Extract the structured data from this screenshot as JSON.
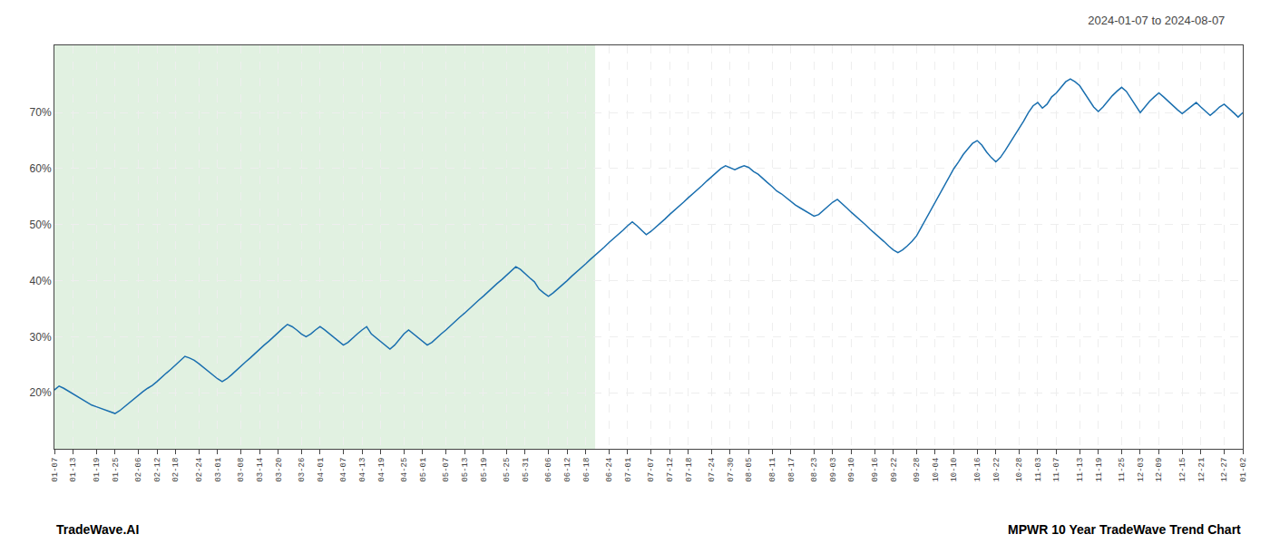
{
  "chart_data": {
    "type": "line",
    "title": "2024-01-07 to 2024-08-07",
    "annotations": [
      "TradeWave.AI",
      "MPWR 10 Year TradeWave Trend Chart"
    ],
    "color": "#1a6faf",
    "shade": {
      "x": [
        0,
        116.025
      ],
      "color": "#c8e6c9"
    },
    "grid": true,
    "ylim": [
      10,
      82
    ],
    "yticks": [
      {
        "value": 20,
        "label": "20%"
      },
      {
        "value": 30,
        "label": "30%"
      },
      {
        "value": 40,
        "label": "40%"
      },
      {
        "value": 50,
        "label": "50%"
      },
      {
        "value": 60,
        "label": "60%"
      },
      {
        "value": 70,
        "label": "70%"
      }
    ],
    "categories": [
      "01-07",
      null,
      null,
      null,
      "01-13",
      null,
      null,
      null,
      null,
      "01-19",
      null,
      null,
      null,
      "01-25",
      null,
      null,
      null,
      null,
      "02-06",
      null,
      null,
      null,
      "02-12",
      null,
      null,
      null,
      "02-18",
      null,
      null,
      null,
      null,
      "02-24",
      null,
      null,
      null,
      "03-01",
      null,
      null,
      null,
      null,
      "03-08",
      null,
      null,
      null,
      "03-14",
      null,
      null,
      null,
      "03-20",
      null,
      null,
      null,
      null,
      "03-26",
      null,
      null,
      null,
      "04-01",
      null,
      null,
      null,
      null,
      "04-07",
      null,
      null,
      null,
      "04-13",
      null,
      null,
      null,
      "04-19",
      null,
      null,
      null,
      null,
      "04-25",
      null,
      null,
      null,
      "05-01",
      null,
      null,
      null,
      null,
      "05-07",
      null,
      null,
      null,
      "05-13",
      null,
      null,
      null,
      "05-19",
      null,
      null,
      null,
      null,
      "05-25",
      null,
      null,
      null,
      "05-31",
      null,
      null,
      null,
      null,
      "06-06",
      null,
      null,
      null,
      "06-12",
      null,
      null,
      null,
      "06-18",
      null,
      null,
      null,
      null,
      "06-24",
      null,
      null,
      null,
      "07-01",
      null,
      null,
      null,
      null,
      "07-07",
      null,
      null,
      null,
      "07-12",
      null,
      null,
      null,
      "07-18",
      null,
      null,
      null,
      null,
      "07-24",
      null,
      null,
      null,
      "07-30",
      null,
      null,
      null,
      "08-05",
      null,
      null,
      null,
      null,
      "08-11",
      null,
      null,
      null,
      "08-17",
      null,
      null,
      null,
      null,
      "08-23",
      null,
      null,
      null,
      "09-03",
      null,
      null,
      null,
      "09-10",
      null,
      null,
      null,
      null,
      "09-16",
      null,
      null,
      null,
      "09-22",
      null,
      null,
      null,
      null,
      "09-28",
      null,
      null,
      null,
      "10-04",
      null,
      null,
      null,
      "10-10",
      null,
      null,
      null,
      null,
      "10-16",
      null,
      null,
      null,
      "10-22",
      null,
      null,
      null,
      null,
      "10-28",
      null,
      null,
      null,
      "11-03",
      null,
      null,
      null,
      "11-07",
      null,
      null,
      null,
      null,
      "11-13",
      null,
      null,
      null,
      "11-19",
      null,
      null,
      null,
      null,
      "11-25",
      null,
      null,
      null,
      "12-03",
      null,
      null,
      null,
      "12-09",
      null,
      null,
      null,
      null,
      "12-15",
      null,
      null,
      null,
      "12-21",
      null,
      null,
      null,
      null,
      "12-27",
      null,
      null,
      null,
      "01-02"
    ],
    "values": [
      20.5,
      21.2,
      20.8,
      20.3,
      19.8,
      19.2,
      18.7,
      18.2,
      17.8,
      17.5,
      17.2,
      16.8,
      16.5,
      16.3,
      16.8,
      17.5,
      18.2,
      18.8,
      19.5,
      20.2,
      20.8,
      21.3,
      22.0,
      22.8,
      23.5,
      24.2,
      25.0,
      25.8,
      26.5,
      26.2,
      25.8,
      25.2,
      24.5,
      23.8,
      23.2,
      22.5,
      22.0,
      22.5,
      23.2,
      24.0,
      24.8,
      25.5,
      26.2,
      27.0,
      27.8,
      28.5,
      29.2,
      30.0,
      30.8,
      31.5,
      32.2,
      31.8,
      31.2,
      30.5,
      30.0,
      30.5,
      31.2,
      31.8,
      31.2,
      30.5,
      29.8,
      29.2,
      28.5,
      29.0,
      29.8,
      30.5,
      31.2,
      31.8,
      30.5,
      29.8,
      29.2,
      28.5,
      27.8,
      28.5,
      29.5,
      30.5,
      31.2,
      30.5,
      29.8,
      29.2,
      28.5,
      29.0,
      29.8,
      30.5,
      31.2,
      32.0,
      32.8,
      33.5,
      34.2,
      35.0,
      35.8,
      36.5,
      37.2,
      38.0,
      38.8,
      39.5,
      40.2,
      41.0,
      41.8,
      42.5,
      42.0,
      41.2,
      40.5,
      39.8,
      38.5,
      37.8,
      37.2,
      37.8,
      38.5,
      39.2,
      40.0,
      40.8,
      41.5,
      42.2,
      43.0,
      43.8,
      44.5,
      45.2,
      46.0,
      46.8,
      47.5,
      48.2,
      49.0,
      49.8,
      50.5,
      49.8,
      49.0,
      48.2,
      48.8,
      49.5,
      50.2,
      51.0,
      51.8,
      52.5,
      53.2,
      54.0,
      54.8,
      55.5,
      56.2,
      57.0,
      57.8,
      58.5,
      59.2,
      60.0,
      60.5,
      60.2,
      59.8,
      60.2,
      60.5,
      60.2,
      59.5,
      59.0,
      58.2,
      57.5,
      56.8,
      56.0,
      55.5,
      54.8,
      54.2,
      53.5,
      53.0,
      52.5,
      52.0,
      51.5,
      51.8,
      52.5,
      53.2,
      54.0,
      54.5,
      53.8,
      53.0,
      52.2,
      51.5,
      50.8,
      50.0,
      49.2,
      48.5,
      47.8,
      47.0,
      46.2,
      45.5,
      45.0,
      45.5,
      46.2,
      47.0,
      48.0,
      49.5,
      51.0,
      52.5,
      54.0,
      55.5,
      57.0,
      58.5,
      60.0,
      61.2,
      62.5,
      63.5,
      64.5,
      65.0,
      64.2,
      63.0,
      62.0,
      61.2,
      62.0,
      63.2,
      64.5,
      65.8,
      67.0,
      68.5,
      70.0,
      71.2,
      71.8,
      70.8,
      71.5,
      72.8,
      73.5,
      74.5,
      75.5,
      76.0,
      75.5,
      74.8,
      73.5,
      72.2,
      71.0,
      70.2,
      71.0,
      72.0,
      73.0,
      73.8,
      74.5,
      73.8,
      72.5,
      71.2,
      70.0,
      71.0,
      72.0,
      72.8,
      73.5,
      72.8,
      72.0,
      71.2,
      70.5,
      69.8,
      70.5,
      71.2,
      71.8,
      71.0,
      70.2,
      69.5,
      70.2,
      71.0,
      71.5,
      70.8,
      70.0,
      69.2,
      70.0
    ]
  }
}
